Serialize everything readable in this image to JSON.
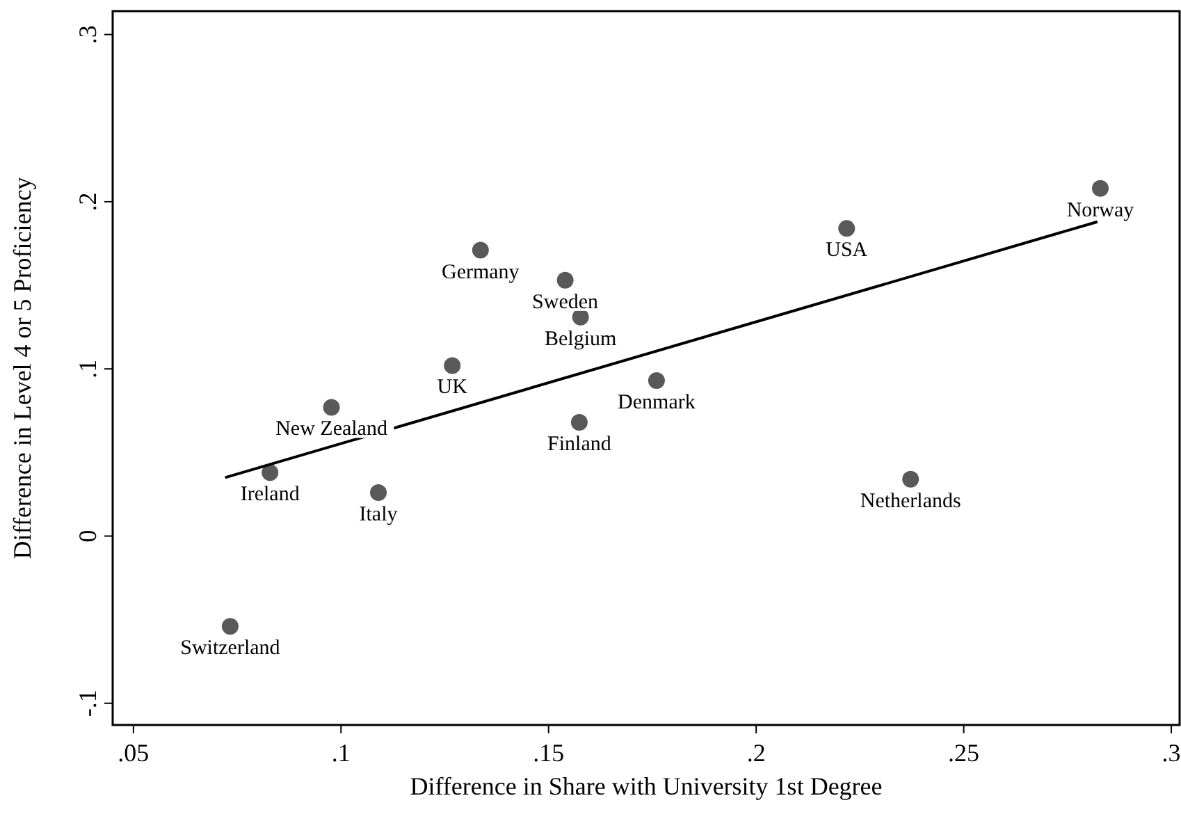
{
  "chart_data": {
    "type": "scatter",
    "xlabel": "Difference in Share with University 1st Degree",
    "ylabel": "Difference in Level 4 or 5 Proficiency",
    "xlim": [
      0.045,
      0.302
    ],
    "ylim": [
      -0.113,
      0.314
    ],
    "xticks": [
      {
        "value": 0.05,
        "label": ".05"
      },
      {
        "value": 0.1,
        "label": ".1"
      },
      {
        "value": 0.15,
        "label": ".15"
      },
      {
        "value": 0.2,
        "label": ".2"
      },
      {
        "value": 0.25,
        "label": ".25"
      },
      {
        "value": 0.3,
        "label": ".3"
      }
    ],
    "yticks": [
      {
        "value": -0.1,
        "label": "-.1"
      },
      {
        "value": 0,
        "label": "0"
      },
      {
        "value": 0.1,
        "label": ".1"
      },
      {
        "value": 0.2,
        "label": ".2"
      },
      {
        "value": 0.3,
        "label": ".3"
      }
    ],
    "grid": false,
    "series": [
      {
        "type": "scatter",
        "marker": "circle",
        "color": "#595959",
        "x": [
          0.0733,
          0.0829,
          0.0977,
          0.109,
          0.1268,
          0.1336,
          0.154,
          0.1577,
          0.1574,
          0.176,
          0.2218,
          0.2829,
          0.2372
        ],
        "values": [
          -0.054,
          0.038,
          0.077,
          0.026,
          0.102,
          0.171,
          0.153,
          0.131,
          0.068,
          0.093,
          0.184,
          0.208,
          0.034
        ]
      },
      {
        "type": "line",
        "color": "#000000",
        "line_style": "solid",
        "marker": "none",
        "x": [
          0.0721,
          0.2822
        ],
        "values": [
          0.035,
          0.188
        ]
      }
    ],
    "annotations": [
      {
        "text": "Switzerland",
        "x": 0.0733,
        "y": -0.054
      },
      {
        "text": "Ireland",
        "x": 0.0829,
        "y": 0.038
      },
      {
        "text": "New Zealand",
        "x": 0.0977,
        "y": 0.077
      },
      {
        "text": "Italy",
        "x": 0.109,
        "y": 0.026
      },
      {
        "text": "UK",
        "x": 0.1268,
        "y": 0.102
      },
      {
        "text": "Germany",
        "x": 0.1336,
        "y": 0.171
      },
      {
        "text": "Sweden",
        "x": 0.154,
        "y": 0.153
      },
      {
        "text": "Belgium",
        "x": 0.1577,
        "y": 0.131
      },
      {
        "text": "Finland",
        "x": 0.1574,
        "y": 0.068
      },
      {
        "text": "Denmark",
        "x": 0.176,
        "y": 0.093
      },
      {
        "text": "USA",
        "x": 0.2218,
        "y": 0.184
      },
      {
        "text": "Norway",
        "x": 0.2829,
        "y": 0.208
      },
      {
        "text": "Netherlands",
        "x": 0.2372,
        "y": 0.034
      }
    ]
  }
}
